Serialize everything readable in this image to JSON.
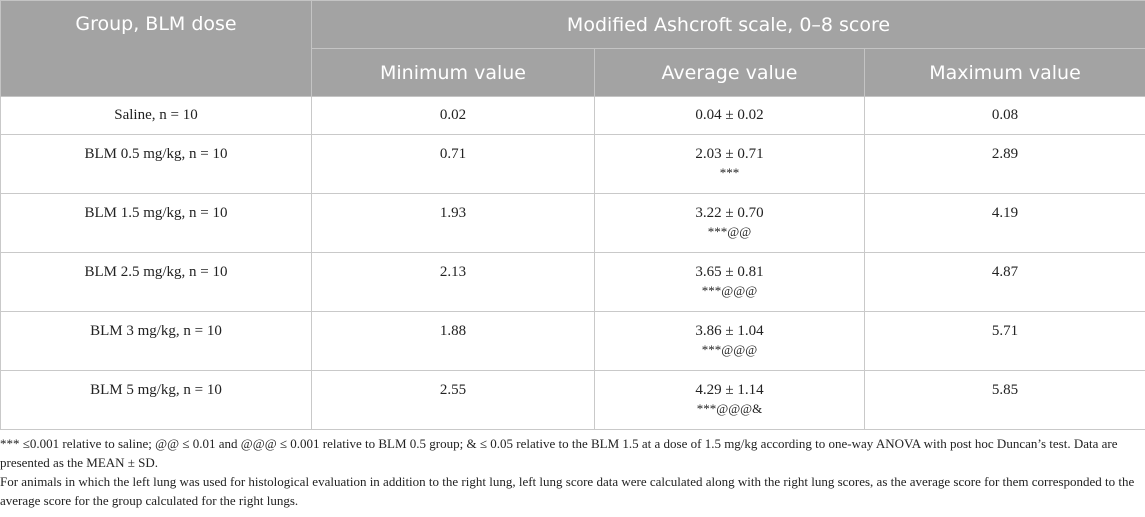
{
  "table": {
    "header_group": "Group, BLM dose",
    "header_scale": "Modified Ashcroft scale, 0–8 score",
    "header_min": "Minimum value",
    "header_avg": "Average value",
    "header_max": "Maximum value",
    "rows": [
      {
        "group": "Saline, n = 10",
        "min": "0.02",
        "avg": "0.04 ± 0.02",
        "sig": "",
        "max": "0.08"
      },
      {
        "group": "BLM 0.5 mg/kg, n = 10",
        "min": "0.71",
        "avg": "2.03 ± 0.71",
        "sig": "***",
        "max": "2.89"
      },
      {
        "group": "BLM 1.5 mg/kg, n = 10",
        "min": "1.93",
        "avg": "3.22 ± 0.70",
        "sig": "***@@",
        "max": "4.19"
      },
      {
        "group": "BLM 2.5 mg/kg, n = 10",
        "min": "2.13",
        "avg": "3.65 ± 0.81",
        "sig": "***@@@",
        "max": "4.87"
      },
      {
        "group": "BLM 3 mg/kg, n = 10",
        "min": "1.88",
        "avg": "3.86 ± 1.04",
        "sig": "***@@@",
        "max": "5.71"
      },
      {
        "group": "BLM 5 mg/kg, n = 10",
        "min": "2.55",
        "avg": "4.29 ± 1.14",
        "sig": "***@@@&",
        "max": "5.85"
      }
    ]
  },
  "footnotes": {
    "note1": "*** ≤0.001 relative to saline; @@ ≤ 0.01 and @@@ ≤ 0.001 relative to BLM 0.5 group; & ≤ 0.05 relative to the BLM 1.5 at a dose of 1.5 mg/kg according to one-way ANOVA with post hoc Duncan’s test. Data are presented as the MEAN ± SD.",
    "note2": "For animals in which the left lung was used for histological evaluation in addition to the right lung, left lung score data were calculated along with the right lung scores, as the average score for them corresponded to the average score for the group calculated for the right lungs."
  }
}
